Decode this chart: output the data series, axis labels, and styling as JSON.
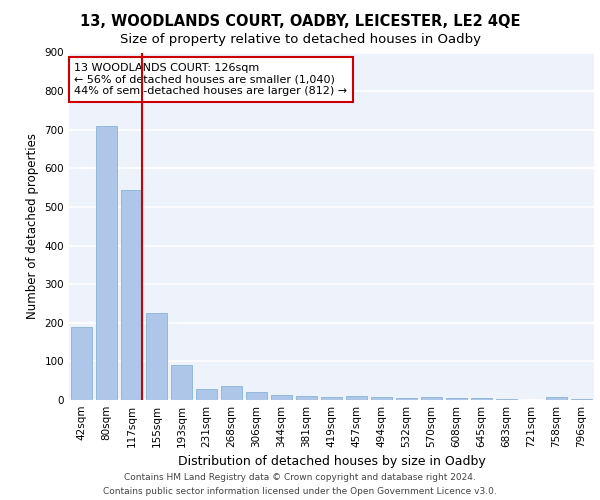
{
  "title1": "13, WOODLANDS COURT, OADBY, LEICESTER, LE2 4QE",
  "title2": "Size of property relative to detached houses in Oadby",
  "xlabel": "Distribution of detached houses by size in Oadby",
  "ylabel": "Number of detached properties",
  "categories": [
    "42sqm",
    "80sqm",
    "117sqm",
    "155sqm",
    "193sqm",
    "231sqm",
    "268sqm",
    "306sqm",
    "344sqm",
    "381sqm",
    "419sqm",
    "457sqm",
    "494sqm",
    "532sqm",
    "570sqm",
    "608sqm",
    "645sqm",
    "683sqm",
    "721sqm",
    "758sqm",
    "796sqm"
  ],
  "values": [
    190,
    710,
    545,
    225,
    90,
    28,
    37,
    22,
    13,
    10,
    7,
    11,
    7,
    6,
    8,
    5,
    5,
    2,
    0,
    7,
    2
  ],
  "bar_color": "#aec6e8",
  "bar_edge_color": "#7aadd4",
  "highlight_index": 2,
  "highlight_color": "#cc0000",
  "annotation_text": "13 WOODLANDS COURT: 126sqm\n← 56% of detached houses are smaller (1,040)\n44% of semi-detached houses are larger (812) →",
  "annotation_box_color": "#ffffff",
  "annotation_box_edge": "#cc0000",
  "footer1": "Contains HM Land Registry data © Crown copyright and database right 2024.",
  "footer2": "Contains public sector information licensed under the Open Government Licence v3.0.",
  "ylim": [
    0,
    900
  ],
  "yticks": [
    0,
    100,
    200,
    300,
    400,
    500,
    600,
    700,
    800,
    900
  ],
  "background_color": "#eef2fa",
  "grid_color": "#ffffff",
  "title1_fontsize": 10.5,
  "title2_fontsize": 9.5,
  "xlabel_fontsize": 9,
  "ylabel_fontsize": 8.5,
  "tick_fontsize": 7.5,
  "annotation_fontsize": 8,
  "footer_fontsize": 6.5
}
